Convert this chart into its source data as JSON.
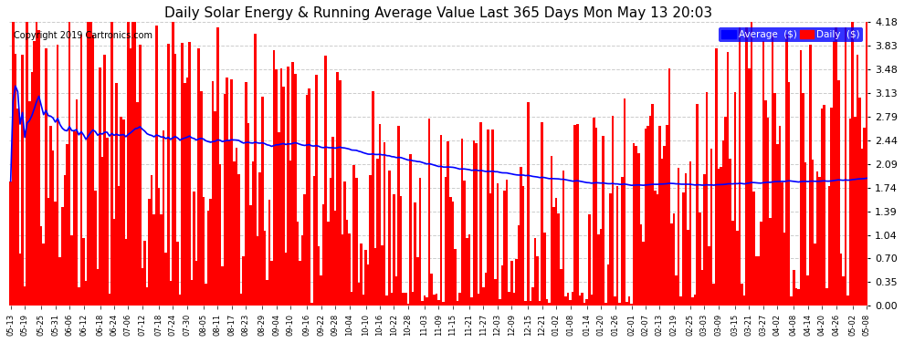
{
  "title": "Daily Solar Energy & Running Average Value Last 365 Days Mon May 13 20:03",
  "copyright": "Copyright 2019 Cartronics.com",
  "legend_avg": "Average  ($)",
  "legend_daily": "Daily  ($)",
  "ylim": [
    0.0,
    4.18
  ],
  "yticks": [
    0.0,
    0.35,
    0.7,
    1.04,
    1.39,
    1.74,
    2.09,
    2.44,
    2.79,
    3.13,
    3.48,
    3.83,
    4.18
  ],
  "bar_color": "#FF0000",
  "avg_color": "#0000FF",
  "background_color": "#FFFFFF",
  "grid_color": "#CCCCCC",
  "title_fontsize": 11,
  "xlabel_fontsize": 6,
  "ylabel_fontsize": 8,
  "xtick_labels": [
    "05-13",
    "05-19",
    "05-25",
    "05-31",
    "06-06",
    "06-12",
    "06-18",
    "06-24",
    "07-06",
    "07-12",
    "07-18",
    "07-24",
    "07-30",
    "08-05",
    "08-11",
    "08-17",
    "08-23",
    "08-29",
    "09-04",
    "09-10",
    "09-16",
    "09-22",
    "09-28",
    "10-04",
    "10-10",
    "10-16",
    "10-22",
    "10-28",
    "11-03",
    "11-09",
    "11-15",
    "11-21",
    "11-27",
    "12-03",
    "12-09",
    "12-15",
    "12-21",
    "01-02",
    "01-08",
    "01-14",
    "01-20",
    "01-26",
    "02-01",
    "02-07",
    "02-13",
    "02-19",
    "02-25",
    "03-03",
    "03-09",
    "03-15",
    "03-21",
    "03-27",
    "04-02",
    "04-08",
    "04-14",
    "04-20",
    "04-26",
    "05-02",
    "05-08"
  ]
}
